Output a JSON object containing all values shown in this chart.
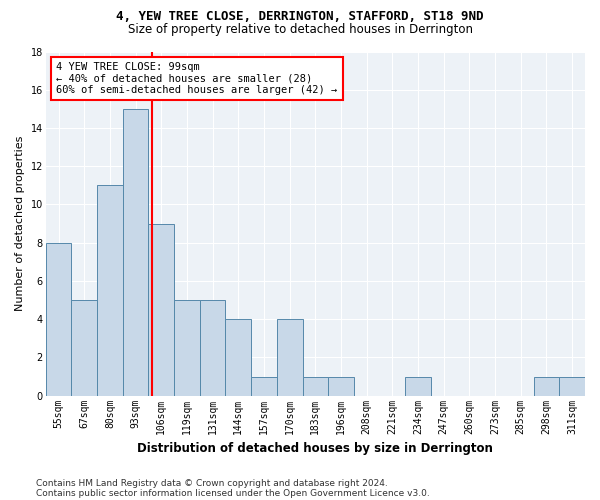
{
  "title1": "4, YEW TREE CLOSE, DERRINGTON, STAFFORD, ST18 9ND",
  "title2": "Size of property relative to detached houses in Derrington",
  "xlabel": "Distribution of detached houses by size in Derrington",
  "ylabel": "Number of detached properties",
  "categories": [
    "55sqm",
    "67sqm",
    "80sqm",
    "93sqm",
    "106sqm",
    "119sqm",
    "131sqm",
    "144sqm",
    "157sqm",
    "170sqm",
    "183sqm",
    "196sqm",
    "208sqm",
    "221sqm",
    "234sqm",
    "247sqm",
    "260sqm",
    "273sqm",
    "285sqm",
    "298sqm",
    "311sqm"
  ],
  "values": [
    8,
    5,
    11,
    15,
    9,
    5,
    5,
    4,
    1,
    4,
    1,
    1,
    0,
    0,
    1,
    0,
    0,
    0,
    0,
    1,
    1
  ],
  "bar_color": "#c8d8e8",
  "bar_edge_color": "#5588aa",
  "vline_x": 3.62,
  "vline_color": "red",
  "annotation_line1": "4 YEW TREE CLOSE: 99sqm",
  "annotation_line2": "← 40% of detached houses are smaller (28)",
  "annotation_line3": "60% of semi-detached houses are larger (42) →",
  "annotation_box_color": "white",
  "annotation_box_edge": "red",
  "ylim": [
    0,
    18
  ],
  "yticks": [
    0,
    2,
    4,
    6,
    8,
    10,
    12,
    14,
    16,
    18
  ],
  "footnote1": "Contains HM Land Registry data © Crown copyright and database right 2024.",
  "footnote2": "Contains public sector information licensed under the Open Government Licence v3.0.",
  "background_color": "#edf2f7",
  "title1_fontsize": 9,
  "title2_fontsize": 8.5,
  "xlabel_fontsize": 8.5,
  "ylabel_fontsize": 8,
  "tick_fontsize": 7,
  "annot_fontsize": 7.5,
  "footnote_fontsize": 6.5
}
